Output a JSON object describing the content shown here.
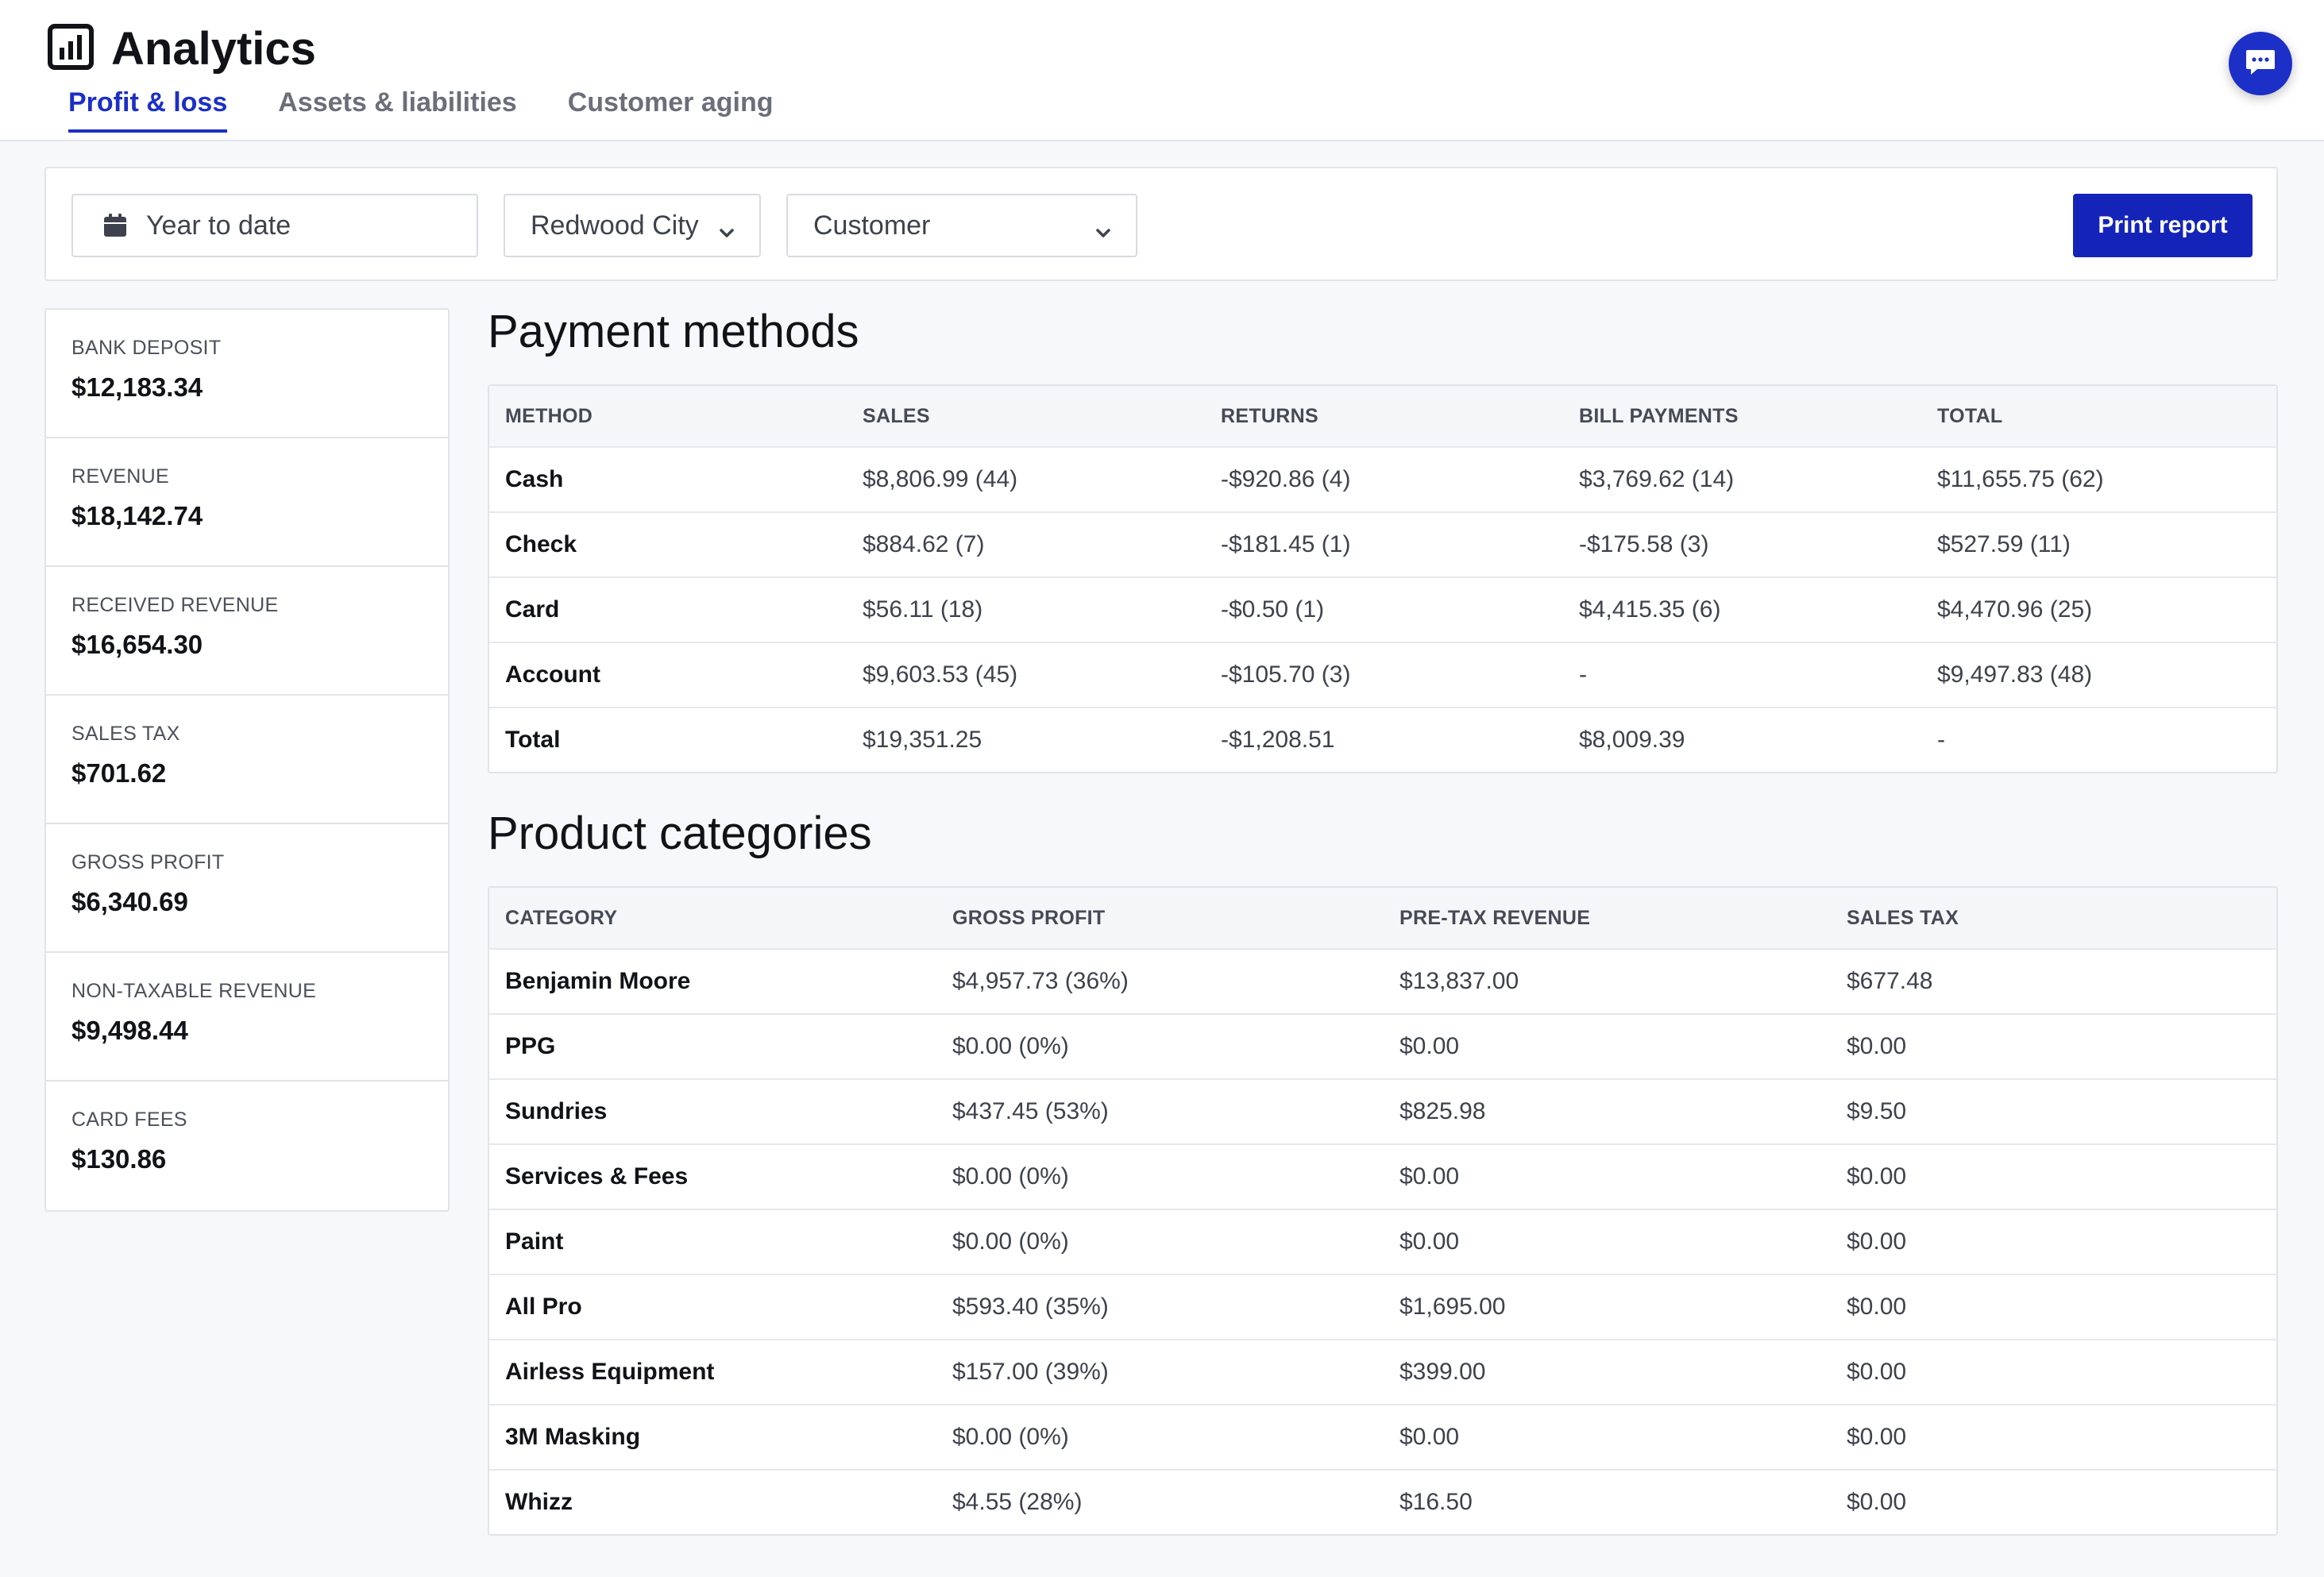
{
  "header": {
    "title": "Analytics",
    "tabs": [
      {
        "label": "Profit & loss",
        "active": true
      },
      {
        "label": "Assets & liabilities",
        "active": false
      },
      {
        "label": "Customer aging",
        "active": false
      }
    ]
  },
  "filters": {
    "date_range": "Year to date",
    "location": "Redwood City",
    "customer_placeholder": "Customer",
    "print_label": "Print report"
  },
  "stats": [
    {
      "label": "BANK DEPOSIT",
      "value": "$12,183.34"
    },
    {
      "label": "REVENUE",
      "value": "$18,142.74"
    },
    {
      "label": "RECEIVED REVENUE",
      "value": "$16,654.30"
    },
    {
      "label": "SALES TAX",
      "value": "$701.62"
    },
    {
      "label": "GROSS PROFIT",
      "value": "$6,340.69"
    },
    {
      "label": "NON-TAXABLE REVENUE",
      "value": "$9,498.44"
    },
    {
      "label": "CARD FEES",
      "value": "$130.86"
    }
  ],
  "payment_methods": {
    "title": "Payment methods",
    "columns": [
      "METHOD",
      "SALES",
      "RETURNS",
      "BILL PAYMENTS",
      "TOTAL"
    ],
    "rows": [
      [
        "Cash",
        "$8,806.99 (44)",
        "-$920.86 (4)",
        "$3,769.62 (14)",
        "$11,655.75 (62)"
      ],
      [
        "Check",
        "$884.62 (7)",
        "-$181.45 (1)",
        "-$175.58 (3)",
        "$527.59 (11)"
      ],
      [
        "Card",
        "$56.11 (18)",
        "-$0.50 (1)",
        "$4,415.35 (6)",
        "$4,470.96 (25)"
      ],
      [
        "Account",
        "$9,603.53 (45)",
        "-$105.70 (3)",
        "-",
        "$9,497.83 (48)"
      ],
      [
        "Total",
        "$19,351.25",
        "-$1,208.51",
        "$8,009.39",
        "-"
      ]
    ]
  },
  "product_categories": {
    "title": "Product categories",
    "columns": [
      "CATEGORY",
      "GROSS PROFIT",
      "PRE-TAX REVENUE",
      "SALES TAX"
    ],
    "rows": [
      [
        "Benjamin Moore",
        "$4,957.73 (36%)",
        "$13,837.00",
        "$677.48"
      ],
      [
        "PPG",
        "$0.00 (0%)",
        "$0.00",
        "$0.00"
      ],
      [
        "Sundries",
        "$437.45 (53%)",
        "$825.98",
        "$9.50"
      ],
      [
        "Services & Fees",
        "$0.00 (0%)",
        "$0.00",
        "$0.00"
      ],
      [
        "Paint",
        "$0.00 (0%)",
        "$0.00",
        "$0.00"
      ],
      [
        "All Pro",
        "$593.40 (35%)",
        "$1,695.00",
        "$0.00"
      ],
      [
        "Airless Equipment",
        "$157.00 (39%)",
        "$399.00",
        "$0.00"
      ],
      [
        "3M Masking",
        "$0.00 (0%)",
        "$0.00",
        "$0.00"
      ],
      [
        "Whizz",
        "$4.55 (28%)",
        "$16.50",
        "$0.00"
      ]
    ]
  },
  "colors": {
    "accent": "#1c2fc7",
    "button": "#1424b8"
  }
}
